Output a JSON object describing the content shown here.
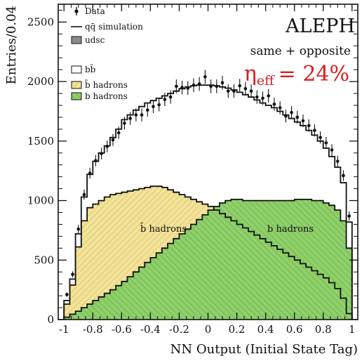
{
  "chart_data": {
    "type": "histogram",
    "experiment": "ALEPH",
    "selection": "same + opposite",
    "efficiency_label": "η",
    "efficiency_subscript": "eff",
    "efficiency_value": "= 24%",
    "xlabel": "NN Output (Initial State Tag)",
    "ylabel": "Entries/0.04",
    "xlim": [
      -1.04,
      1.04
    ],
    "ylim": [
      0,
      2650
    ],
    "x_ticks": [
      -1,
      -0.8,
      -0.6,
      -0.4,
      -0.2,
      0,
      0.2,
      0.4,
      0.6,
      0.8,
      1
    ],
    "x_tick_labels": [
      "-1",
      "-0.8",
      "-0.6",
      "-0.4",
      "-0.2",
      "0",
      "0.2",
      "0.4",
      "0.6",
      "0.8",
      "1"
    ],
    "y_ticks": [
      0,
      500,
      1000,
      1500,
      2000,
      2500
    ],
    "y_tick_labels": [
      "0",
      "500",
      "1000",
      "1500",
      "2000",
      "2500"
    ],
    "bin_width": 0.04,
    "bin_low_edge": -1.0,
    "legend": [
      {
        "key": "data",
        "label": "Data"
      },
      {
        "key": "qq",
        "label": "qq̄  simulation"
      },
      {
        "key": "udsc",
        "label": "udsc"
      },
      {
        "key": "bb",
        "label": "bb̄"
      },
      {
        "key": "bbar_hadrons",
        "label": "b̄ hadrons"
      },
      {
        "key": "b_hadrons",
        "label": "b hadrons"
      }
    ],
    "region_labels": {
      "bbar": "b̄ hadrons",
      "b": "b hadrons"
    },
    "colors": {
      "b_hadrons": "#8fd06a",
      "bbar_hadrons": "#f3e39a",
      "udsc": "#8c8c8c",
      "bb": "#ffffff",
      "line": "#111111",
      "efficiency": "#d62020"
    },
    "series": [
      {
        "name": "Data",
        "key": "data",
        "values": [
          210,
          380,
          760,
          1050,
          1230,
          1335,
          1395,
          1455,
          1510,
          1570,
          1650,
          1690,
          1720,
          1720,
          1760,
          1790,
          1805,
          1850,
          1870,
          1960,
          1950,
          1945,
          1970,
          1980,
          2040,
          1960,
          1960,
          1990,
          1920,
          1920,
          1965,
          1940,
          1920,
          1870,
          1860,
          1880,
          1810,
          1780,
          1710,
          1740,
          1700,
          1670,
          1630,
          1590,
          1530,
          1485,
          1425,
          1330,
          1210,
          870
        ]
      },
      {
        "name": "qq̄ simulation",
        "key": "qq",
        "values": [
          160,
          340,
          720,
          1030,
          1220,
          1330,
          1400,
          1460,
          1530,
          1600,
          1680,
          1720,
          1760,
          1790,
          1820,
          1840,
          1860,
          1880,
          1900,
          1920,
          1940,
          1955,
          1965,
          1970,
          1970,
          1970,
          1965,
          1955,
          1945,
          1930,
          1910,
          1890,
          1870,
          1845,
          1820,
          1800,
          1780,
          1750,
          1720,
          1690,
          1660,
          1630,
          1590,
          1550,
          1500,
          1440,
          1370,
          1280,
          1150,
          820
        ]
      },
      {
        "name": "b̄ hadrons",
        "key": "bbar_hadrons",
        "values": [
          130,
          290,
          610,
          830,
          940,
          970,
          1000,
          1030,
          1050,
          1060,
          1070,
          1080,
          1090,
          1100,
          1110,
          1120,
          1120,
          1110,
          1090,
          1070,
          1050,
          1030,
          1010,
          990,
          970,
          950,
          920,
          890,
          860,
          830,
          800,
          770,
          740,
          710,
          680,
          650,
          620,
          590,
          560,
          530,
          500,
          470,
          440,
          410,
          380,
          350,
          310,
          260,
          180,
          50
        ]
      },
      {
        "name": "b hadrons",
        "key": "b_hadrons",
        "values": [
          20,
          45,
          70,
          100,
          130,
          160,
          190,
          220,
          250,
          285,
          320,
          360,
          400,
          440,
          480,
          520,
          560,
          600,
          640,
          680,
          720,
          760,
          800,
          840,
          880,
          920,
          950,
          980,
          1000,
          1010,
          1010,
          1000,
          1000,
          1000,
          1000,
          1000,
          1000,
          1000,
          1000,
          1000,
          1010,
          1010,
          1010,
          1000,
          1000,
          980,
          960,
          920,
          830,
          600
        ]
      }
    ]
  }
}
